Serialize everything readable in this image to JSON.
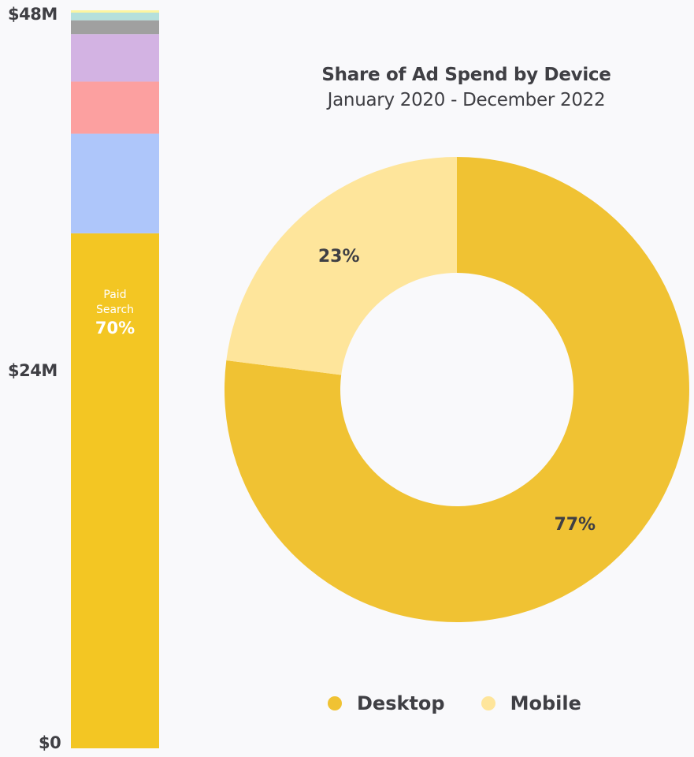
{
  "chart_data": [
    {
      "type": "bar",
      "stacked": true,
      "ylim": [
        0,
        48
      ],
      "yticks": [
        "$0",
        "$24M",
        "$48M"
      ],
      "ytick_values": [
        0,
        24,
        48
      ],
      "unit": "$M",
      "segments": [
        {
          "name": "Paid Search",
          "value": 33.6,
          "color": "#F3C623",
          "label_category": "Paid Search",
          "label_category_lines": [
            "Paid",
            "Search"
          ],
          "label_pct": "70%"
        },
        {
          "name": "segment-2",
          "value": 6.5,
          "color": "#AEC6FA"
        },
        {
          "name": "segment-3",
          "value": 3.4,
          "color": "#FCA0A0"
        },
        {
          "name": "segment-4",
          "value": 3.1,
          "color": "#D3B3E3"
        },
        {
          "name": "segment-5",
          "value": 0.9,
          "color": "#A0A0A0"
        },
        {
          "name": "segment-6",
          "value": 0.5,
          "color": "#B5E0DC"
        },
        {
          "name": "segment-7",
          "value": 0.15,
          "color": "#FDF5A0"
        }
      ]
    },
    {
      "type": "pie",
      "donut": true,
      "title": "Share of Ad Spend by Device",
      "subtitle": "January 2020 - December 2022",
      "slices": [
        {
          "label": "Desktop",
          "value": 77,
          "display": "77%",
          "color": "#F0C233"
        },
        {
          "label": "Mobile",
          "value": 23,
          "display": "23%",
          "color": "#FEE59B"
        }
      ],
      "legend": "bottom"
    }
  ]
}
